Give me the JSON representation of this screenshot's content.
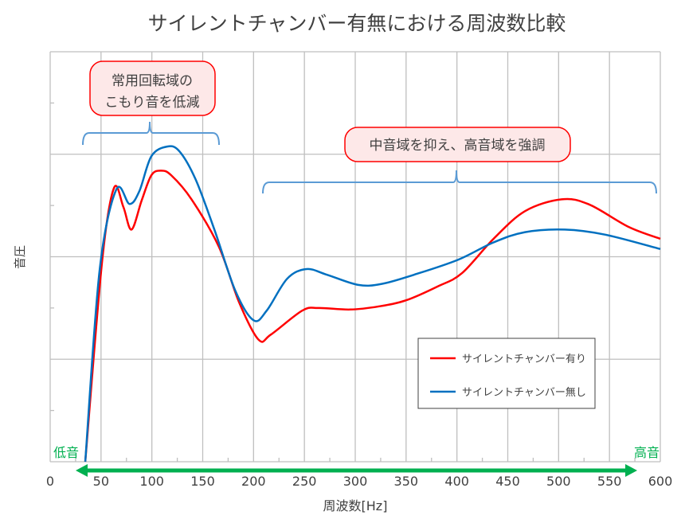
{
  "chart_data": {
    "type": "line",
    "title": "サイレントチャンバー有無における周波数比較",
    "xlabel": "周波数[Hz]",
    "ylabel": "音圧",
    "xlim": [
      0,
      600
    ],
    "ylim": [
      0,
      8
    ],
    "x_ticks": [
      0,
      50,
      100,
      150,
      200,
      250,
      300,
      350,
      400,
      450,
      500,
      550,
      600
    ],
    "x_tick_labels": [
      "0",
      "50",
      "100",
      "150",
      "200",
      "250",
      "300",
      "350",
      "400",
      "450",
      "500",
      "550",
      "600"
    ],
    "y_tick_labels_shown": false,
    "grid": true,
    "legend_position": "lower-right",
    "series": [
      {
        "name": "サイレントチャンバー有り",
        "color": "#ff0000",
        "points": [
          [
            34.5,
            0
          ],
          [
            51,
            3.9
          ],
          [
            62.7,
            5.34
          ],
          [
            72,
            4.97
          ],
          [
            80,
            4.53
          ],
          [
            90,
            5.1
          ],
          [
            99.5,
            5.59
          ],
          [
            109,
            5.68
          ],
          [
            119,
            5.59
          ],
          [
            139,
            5.12
          ],
          [
            166,
            4.19
          ],
          [
            186,
            3.1
          ],
          [
            205,
            2.38
          ],
          [
            217,
            2.48
          ],
          [
            248,
            2.95
          ],
          [
            264,
            3.0
          ],
          [
            295,
            2.97
          ],
          [
            323,
            3.03
          ],
          [
            350,
            3.15
          ],
          [
            381,
            3.42
          ],
          [
            405,
            3.68
          ],
          [
            436,
            4.35
          ],
          [
            467,
            4.89
          ],
          [
            503,
            5.12
          ],
          [
            530,
            5.02
          ],
          [
            569,
            4.58
          ],
          [
            600,
            4.35
          ]
        ]
      },
      {
        "name": "サイレントチャンバー無し",
        "color": "#0070c0",
        "points": [
          [
            34.5,
            0
          ],
          [
            48.6,
            3.73
          ],
          [
            65,
            5.31
          ],
          [
            78,
            5.03
          ],
          [
            87.7,
            5.28
          ],
          [
            99.5,
            5.96
          ],
          [
            115,
            6.15
          ],
          [
            127,
            6.06
          ],
          [
            143,
            5.51
          ],
          [
            162,
            4.5
          ],
          [
            182,
            3.34
          ],
          [
            200,
            2.76
          ],
          [
            213,
            2.95
          ],
          [
            233,
            3.57
          ],
          [
            252,
            3.76
          ],
          [
            272,
            3.65
          ],
          [
            303,
            3.45
          ],
          [
            326,
            3.47
          ],
          [
            358,
            3.65
          ],
          [
            401,
            3.94
          ],
          [
            436,
            4.28
          ],
          [
            467,
            4.48
          ],
          [
            506,
            4.53
          ],
          [
            546,
            4.43
          ],
          [
            600,
            4.15
          ]
        ]
      }
    ],
    "annotations": [
      {
        "text_line1": "常用回転域の",
        "text_line2": "こもり音を低減",
        "range_hz": [
          32,
          166
        ]
      },
      {
        "text": "中音域を抑え、高音域を強調",
        "range_hz": [
          210,
          595
        ]
      }
    ],
    "range_arrow": {
      "low_label": "低音",
      "high_label": "高音",
      "color": "#00b050"
    }
  }
}
